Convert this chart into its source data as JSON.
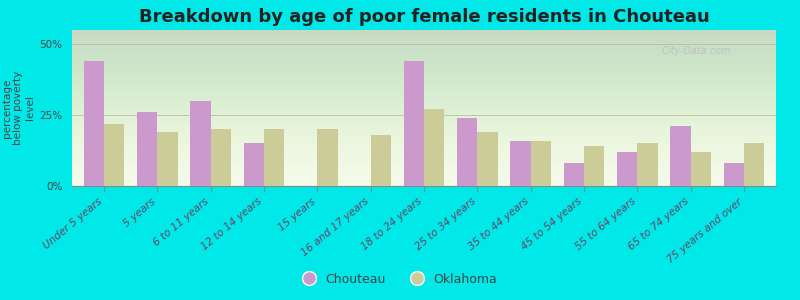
{
  "title": "Breakdown by age of poor female residents in Chouteau",
  "ylabel": "percentage\nbelow poverty\nlevel",
  "categories": [
    "Under 5 years",
    "5 years",
    "6 to 11 years",
    "12 to 14 years",
    "15 years",
    "16 and 17 years",
    "18 to 24 years",
    "25 to 34 years",
    "35 to 44 years",
    "45 to 54 years",
    "55 to 64 years",
    "65 to 74 years",
    "75 years and over"
  ],
  "chouteau_values": [
    44,
    26,
    30,
    15,
    0,
    0,
    44,
    24,
    16,
    8,
    12,
    21,
    8
  ],
  "oklahoma_values": [
    22,
    19,
    20,
    20,
    20,
    18,
    27,
    19,
    16,
    14,
    15,
    12,
    15
  ],
  "chouteau_color": "#cc99cc",
  "oklahoma_color": "#cccc99",
  "outer_bg": "#00e8e8",
  "plot_bg_top": "#e0ede0",
  "plot_bg_bottom": "#f5fae8",
  "ylim": [
    0,
    55
  ],
  "yticks": [
    0,
    25,
    50
  ],
  "ytick_labels": [
    "0%",
    "25%",
    "50%"
  ],
  "bar_width": 0.38,
  "title_fontsize": 13,
  "tick_fontsize": 7.5,
  "ylabel_fontsize": 7.5,
  "legend_labels": [
    "Chouteau",
    "Oklahoma"
  ],
  "watermark": "City-Data.com"
}
